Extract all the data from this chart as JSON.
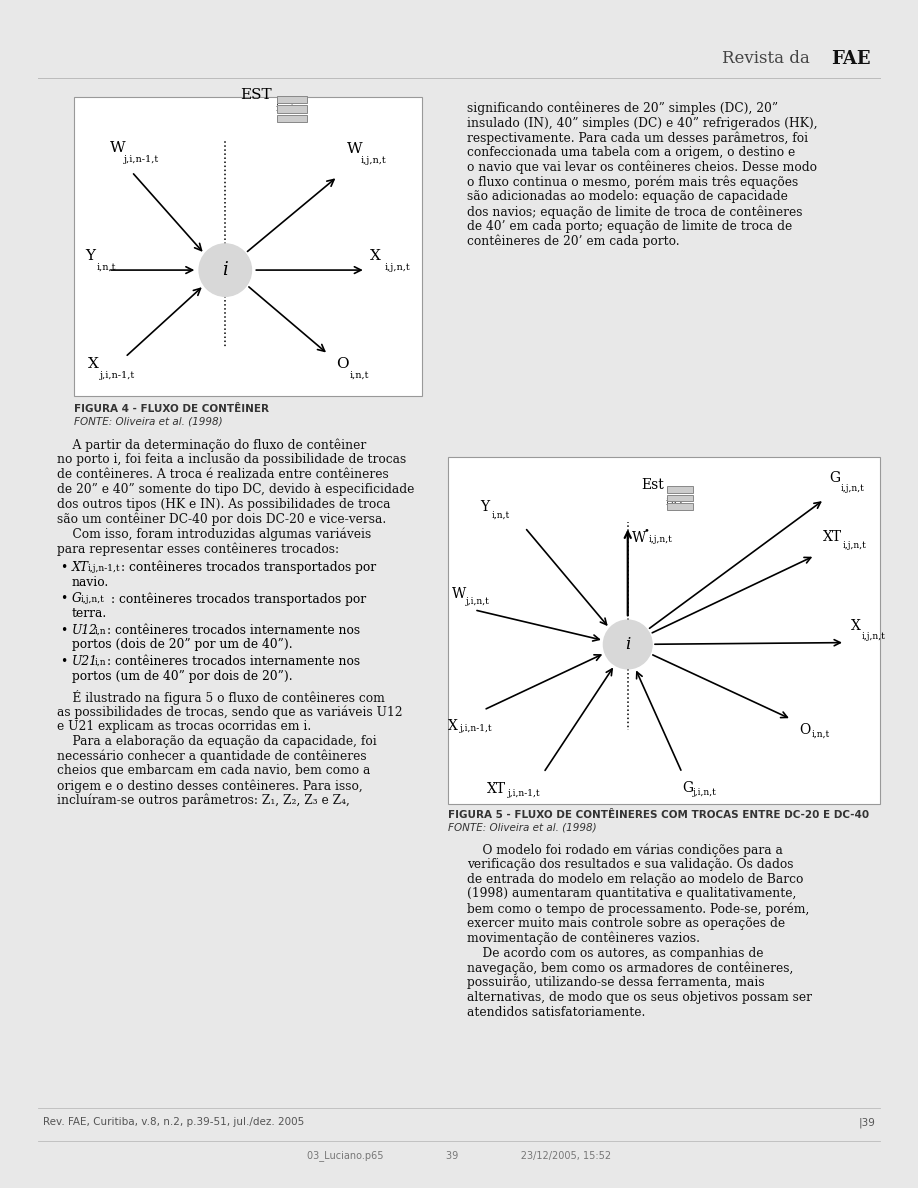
{
  "page_bg": "#e8e8e8",
  "content_bg": "#ffffff",
  "header_text": "Revista da ",
  "header_bold": "FAE",
  "fig1_title": "FIGURA 4 - FLUXO DE CONTÊINER",
  "fig1_source": "FONTE: Oliveira et al. (1998)",
  "fig2_title": "FIGURA 5 - FLUXO DE CONTÊINERES COM TROCAS ENTRE DC-20 E DC-40",
  "fig2_source": "FONTE: Oliveira et al. (1998)",
  "footer_left": "Rev. FAE, Curitiba, v.8, n.2, p.39-51, jul./dez. 2005",
  "footer_right": "|39",
  "footer_bottom": "03_Luciano.p65                    39                    23/12/2005, 15:52",
  "right_col_text": [
    "significando contêineres de 20” simples (DC), 20”",
    "insulado (IN), 40” simples (DC) e 40” refrigerados (HK),",
    "respectivamente. Para cada um desses parâmetros, foi",
    "confeccionada uma tabela com a origem, o destino e",
    "o navio que vai levar os contêineres cheios. Desse modo",
    "o fluxo continua o mesmo, porém mais três equações",
    "são adicionadas ao modelo: equação de capacidade",
    "dos navios; equação de limite de troca de contêineres",
    "de 40’ em cada porto; equação de limite de troca de",
    "contêineres de 20’ em cada porto."
  ],
  "left_col_para1": [
    "    A partir da determinação do fluxo de contêiner",
    "no porto i, foi feita a inclusão da possibilidade de trocas",
    "de contêineres. A troca é realizada entre contêineres",
    "de 20” e 40” somente do tipo DC, devido à especificidade",
    "dos outros tipos (HK e IN). As possibilidades de troca",
    "são um contêiner DC-40 por dois DC-20 e vice-versa.",
    "    Com isso, foram introduzidas algumas variáveis",
    "para representar esses contêineres trocados:"
  ],
  "left_bullet1": "XT",
  "left_bullet1_sub": "i,j,n-1,t",
  "left_bullet1_text": ": contêineres trocados transportados por",
  "left_bullet1_text2": "navio.",
  "left_bullet2": "G",
  "left_bullet2_sub": "i,j,n,t",
  "left_bullet2_text": ": contêineres trocados transportados por",
  "left_bullet2_text2": "terra.",
  "left_bullet3": "U12",
  "left_bullet3_sub": "i,n",
  "left_bullet3_text": ": contêineres trocados internamente nos",
  "left_bullet3_text2": "portos (dois de 20” por um de 40”).",
  "left_bullet4": "U21",
  "left_bullet4_sub": "i,n",
  "left_bullet4_text": ": contêineres trocados internamente nos",
  "left_bullet4_text2": "portos (um de 40” por dois de 20”).",
  "left_col_para2": [
    "    É ilustrado na figura 5 o fluxo de contêineres com",
    "as possibilidades de trocas, sendo que as variáveis U12",
    "e U21 explicam as trocas ocorridas em i.",
    "    Para a elaboração da equação da capacidade, foi",
    "necessário conhecer a quantidade de contêineres",
    "cheios que embarcam em cada navio, bem como a",
    "origem e o destino desses contêineres. Para isso,",
    "incluíram-se outros parâmetros: Z₁, Z₂, Z₃ e Z₄,"
  ],
  "right_col_text2": [
    "    O modelo foi rodado em várias condições para a",
    "verificação dos resultados e sua validação. Os dados",
    "de entrada do modelo em relação ao modelo de Barco",
    "(1998) aumentaram quantitativa e qualitativamente,",
    "bem como o tempo de processamento. Pode-se, porém,",
    "exercer muito mais controle sobre as operações de",
    "movimentação de contêineres vazios.",
    "    De acordo com os autores, as companhias de",
    "navegação, bem como os armadores de contêineres,",
    "possuirão, utilizando-se dessa ferramenta, mais",
    "alternativas, de modo que os seus objetivos possam ser",
    "atendidos satisfatoriamente."
  ]
}
